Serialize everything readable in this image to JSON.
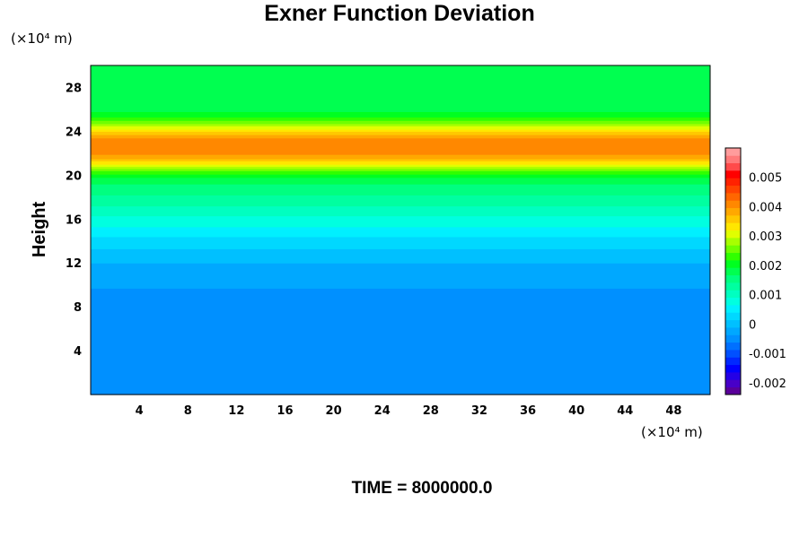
{
  "chart_data": {
    "type": "heatmap",
    "title": "Exner Function Deviation",
    "ylabel": "Height",
    "x_unit": "(×10⁴ m)",
    "y_unit": "(×10⁴ m)",
    "xlim": [
      0,
      51
    ],
    "ylim": [
      0,
      30
    ],
    "x_ticks": [
      "4",
      "8",
      "12",
      "16",
      "20",
      "24",
      "28",
      "32",
      "36",
      "40",
      "44",
      "48"
    ],
    "y_ticks": [
      "4",
      "8",
      "12",
      "16",
      "20",
      "24",
      "28"
    ],
    "colorbar": {
      "range": [
        -0.0024,
        0.006
      ],
      "ticks": [
        "-0.002",
        "-0.001",
        "0",
        "0.001",
        "0.002",
        "0.003",
        "0.004",
        "0.005"
      ],
      "colors": [
        "#5a009a",
        "#4800c8",
        "#2400e6",
        "#0000ff",
        "#0028ff",
        "#0050ff",
        "#0070ff",
        "#0090ff",
        "#00a8ff",
        "#00c0ff",
        "#00d8ff",
        "#00f0ff",
        "#00ffe0",
        "#00ffc0",
        "#00ffa0",
        "#00ff80",
        "#00ff50",
        "#00ff20",
        "#30ff00",
        "#70ff00",
        "#a8ff00",
        "#e0ff00",
        "#ffe600",
        "#ffc800",
        "#ffa800",
        "#ff8800",
        "#ff6600",
        "#ff4400",
        "#ff2200",
        "#ff0000",
        "#ff4a4a",
        "#ff7a7a",
        "#ff9c9c"
      ]
    },
    "profile": {
      "height": [
        0,
        9.6,
        9.7,
        10.8,
        11.0,
        11.8,
        12.2,
        13.0,
        14.0,
        15.5,
        17.0,
        18.5,
        19.5,
        20.3,
        21.0,
        21.7,
        22.3,
        22.8,
        23.3,
        23.9,
        24.6,
        25.3,
        26.0,
        26.8,
        28.0,
        30.0
      ],
      "value": [
        -0.0005,
        -0.0005,
        -0.0003,
        -0.0003,
        -0.00018,
        -0.00018,
        -5e-05,
        8e-05,
        0.0003,
        0.0007,
        0.0011,
        0.0015,
        0.00175,
        0.0023,
        0.0032,
        0.00385,
        0.00415,
        0.0042,
        0.004,
        0.0036,
        0.0028,
        0.0022,
        0.00185,
        0.0017,
        0.0017,
        0.0017
      ]
    },
    "time_label": "TIME = 8000000.0"
  }
}
